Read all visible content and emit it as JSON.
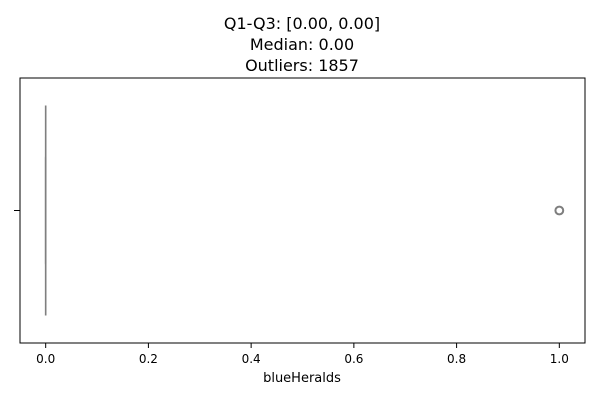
{
  "chart_data": {
    "type": "box",
    "orientation": "horizontal",
    "title_lines": [
      "Q1-Q3: [0.00, 0.00]",
      "Median: 0.00",
      "Outliers: 1857"
    ],
    "xlabel": "blueHeralds",
    "ylabel": "",
    "xlim": [
      -0.05,
      1.05
    ],
    "x_ticks": [
      0.0,
      0.2,
      0.4,
      0.6,
      0.8,
      1.0
    ],
    "x_tick_labels": [
      "0.0",
      "0.2",
      "0.4",
      "0.6",
      "0.8",
      "1.0"
    ],
    "grid": false,
    "legend": "none",
    "box": {
      "q1": 0.0,
      "median": 0.0,
      "q3": 0.0,
      "whisker_low": 0.0,
      "whisker_high": 0.0,
      "outlier_values": [
        1.0
      ],
      "outlier_count": 1857
    },
    "colors": {
      "box_line": "#7f7f7f",
      "outlier_edge": "#7f7f7f",
      "axes": "#000000"
    }
  }
}
